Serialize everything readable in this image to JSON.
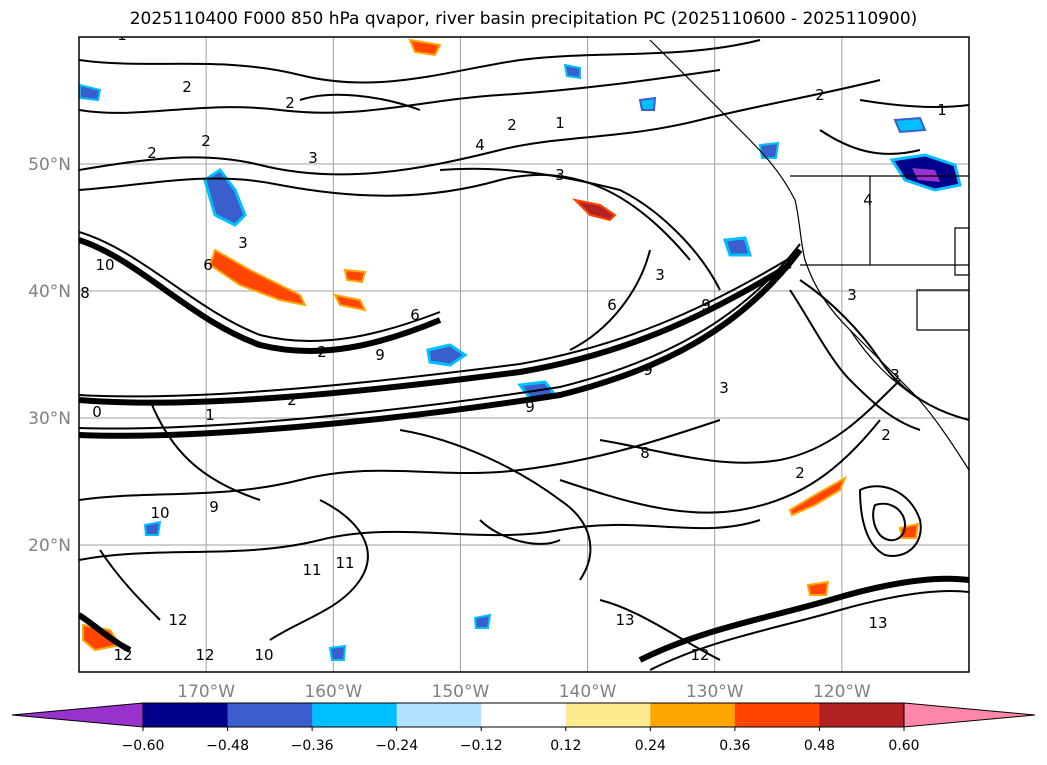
{
  "title": "2025110400 F000 850 hPa qvapor, river basin precipitation PC (2025110600 - 2025110900)",
  "map": {
    "lat_labels": [
      "50°N",
      "40°N",
      "30°N",
      "20°N"
    ],
    "lat_values": [
      50,
      40,
      30,
      20
    ],
    "lon_labels": [
      "170°W",
      "160°W",
      "150°W",
      "140°W",
      "130°W",
      "120°W"
    ],
    "lon_values": [
      -170,
      -160,
      -150,
      -140,
      -130,
      -120
    ],
    "lat_range": [
      10,
      60
    ],
    "lon_range": [
      -180,
      -110
    ],
    "contour_labels": [
      "1",
      "2",
      "2",
      "2",
      "3",
      "2",
      "4",
      "3",
      "2",
      "1",
      "3",
      "8",
      "10",
      "6",
      "2",
      "9",
      "6",
      "1",
      "0",
      "2",
      "9",
      "3",
      "9",
      "6",
      "8",
      "2",
      "3",
      "4",
      "1",
      "3",
      "9",
      "10",
      "9",
      "11",
      "12",
      "11",
      "12",
      "10",
      "12",
      "13",
      "12",
      "13",
      "2",
      "3",
      "2"
    ]
  },
  "colorbar": {
    "ticks": [
      "−0.60",
      "−0.48",
      "−0.36",
      "−0.24",
      "−0.12",
      "0.12",
      "0.24",
      "0.36",
      "0.48",
      "0.60"
    ],
    "colors": [
      "#9932cc",
      "#00008b",
      "#3a5fcd",
      "#00bfff",
      "#b0e2ff",
      "#ffffff",
      "#ffeb8f",
      "#ffa500",
      "#ff4500",
      "#b22222",
      "#ff88aa"
    ],
    "under_color": "#9932cc",
    "over_color": "#ff88aa"
  },
  "colors": {
    "grid": "#a0a0a0",
    "contour": "#000000",
    "frame": "#000000"
  }
}
